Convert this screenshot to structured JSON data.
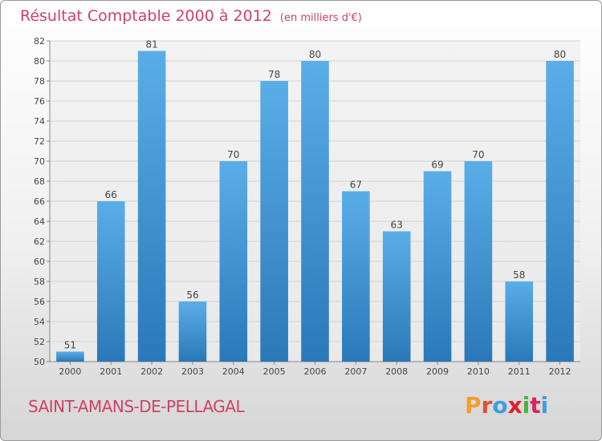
{
  "header": {
    "title": "Résultat Comptable 2000 à 2012",
    "unit": "(en milliers d'€)"
  },
  "footer": {
    "place": "SAINT-AMANS-DE-PELLAGAL",
    "logo": "Proxiti"
  },
  "colors": {
    "title": "#d0406a",
    "bar_top": "#5aaee8",
    "bar_bottom": "#2a78b8",
    "logo": [
      "#f0a030",
      "#e05030",
      "#3aa0e0",
      "#e02030",
      "#50b040",
      "#e02060",
      "#3aa0e0"
    ]
  },
  "chart_data": {
    "type": "bar",
    "categories": [
      "2000",
      "2001",
      "2002",
      "2003",
      "2004",
      "2005",
      "2006",
      "2007",
      "2008",
      "2009",
      "2010",
      "2011",
      "2012"
    ],
    "values": [
      51,
      66,
      81,
      56,
      70,
      78,
      80,
      67,
      63,
      69,
      70,
      58,
      80
    ],
    "ylim": [
      50,
      82
    ],
    "yticks": [
      50,
      52,
      54,
      56,
      58,
      60,
      62,
      64,
      66,
      68,
      70,
      72,
      74,
      76,
      78,
      80,
      82
    ],
    "grid": true,
    "xlabel": "",
    "ylabel": ""
  }
}
